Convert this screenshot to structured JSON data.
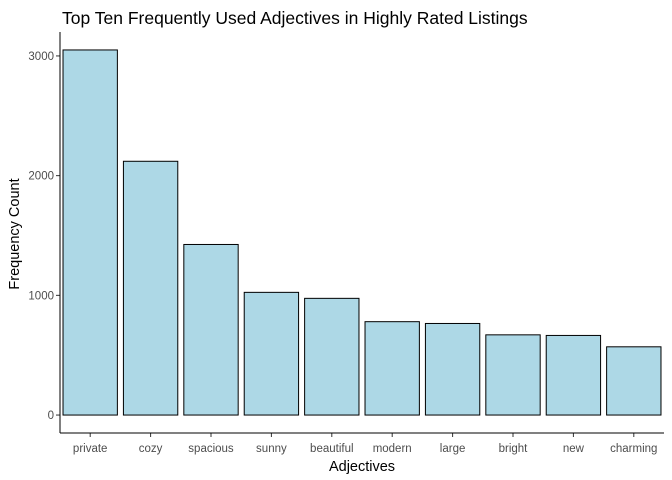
{
  "chart_data": {
    "type": "bar",
    "title": "Top Ten Frequently Used Adjectives in Highly Rated Listings",
    "xlabel": "Adjectives",
    "ylabel": "Frequency Count",
    "categories": [
      "private",
      "cozy",
      "spacious",
      "sunny",
      "beautiful",
      "modern",
      "large",
      "bright",
      "new",
      "charming"
    ],
    "values": [
      3050,
      2120,
      1425,
      1025,
      975,
      780,
      765,
      670,
      665,
      570
    ],
    "ylim": [
      -150,
      3200
    ],
    "yticks": [
      0,
      1000,
      2000,
      3000
    ],
    "grid": false,
    "legend": "none",
    "colors": {
      "bar_fill": "#add8e6",
      "bar_stroke": "#000000",
      "axis": "#000000",
      "tick_text": "#4d4d4d"
    }
  }
}
